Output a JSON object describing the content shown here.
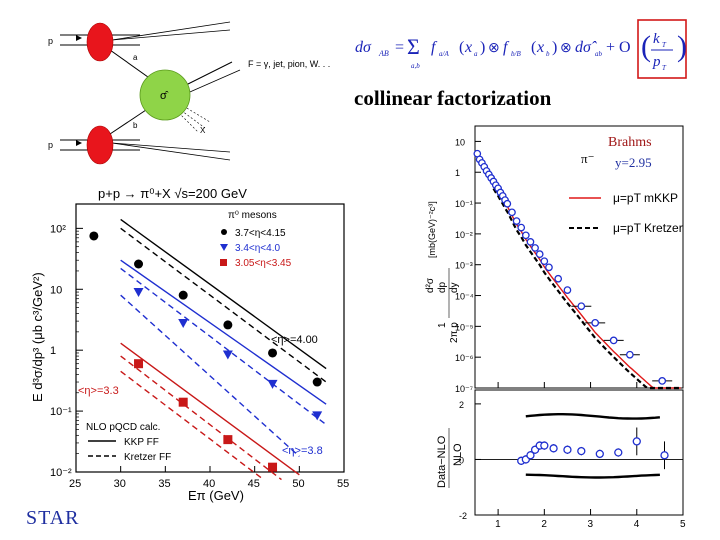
{
  "diagram": {
    "beam_a": "p",
    "beam_b": "p",
    "parton_a": "a",
    "parton_b": "b",
    "hard_process": "σ̂",
    "final_state": "F = γ,  jet, pion, W. . .",
    "remnant": "X"
  },
  "formula": {
    "lhs": "dσ",
    "lhs_sub": "AB",
    "equals": "=",
    "sum": "Σ",
    "sum_sub": "a,b",
    "body": "f",
    "fa_sub": "a/A",
    "xa": "x",
    "xa_sub": "a",
    "fb_sub": "b/B",
    "xb": "x",
    "xb_sub": "b",
    "otimes": "⊗",
    "dsigma_hat": "dσ̂",
    "dsigma_hat_sub": "ab",
    "plus_O": "+ O",
    "kt": "k",
    "kt_sub": "T",
    "pt": "p",
    "pt_sub": "T"
  },
  "caption": "collinear factorization",
  "star_label": "STAR",
  "chart_data": [
    {
      "type": "scatter",
      "title": "p+p → π⁰+X   √s=200 GeV",
      "xlabel": "Eπ (GeV)",
      "ylabel": "E d³σ/dp³ (μb c³/GeV²)",
      "xlim": [
        25,
        55
      ],
      "ylim_log10": [
        -2,
        2.4
      ],
      "yscale": "log",
      "x_ticks": [
        25,
        30,
        35,
        40,
        45,
        50,
        55
      ],
      "y_tick_labels": [
        "10²",
        "10",
        "1",
        "10⁻¹",
        "10⁻²"
      ],
      "legend_title": "π⁰ mesons",
      "series": [
        {
          "name": "3.7<η<4.15",
          "marker": "circle",
          "color": "#000000",
          "x": [
            27,
            32,
            37,
            42,
            47,
            52
          ],
          "y": [
            75,
            26,
            8,
            2.6,
            0.9,
            0.3
          ]
        },
        {
          "name": "3.4<η<4.0",
          "marker": "triangle-down",
          "color": "#1f2fd0",
          "x": [
            32,
            37,
            42,
            47,
            52
          ],
          "y": [
            9,
            2.8,
            0.85,
            0.28,
            0.085
          ]
        },
        {
          "name": "3.05<η<3.45",
          "marker": "square",
          "color": "#c81818",
          "x": [
            32,
            37,
            42,
            47
          ],
          "y": [
            0.6,
            0.14,
            0.034,
            0.012
          ]
        }
      ],
      "curves": [
        {
          "name": "KKP FF",
          "color": "#000000",
          "dash": false,
          "x": [
            30,
            53
          ],
          "y": [
            140,
            0.5
          ]
        },
        {
          "name": "Kretzer FF",
          "color": "#000000",
          "dash": true,
          "x": [
            30,
            53
          ],
          "y": [
            100,
            0.3
          ]
        },
        {
          "name": "",
          "color": "#1f2fd0",
          "dash": false,
          "x": [
            30,
            53
          ],
          "y": [
            30,
            0.13
          ]
        },
        {
          "name": "",
          "color": "#1f2fd0",
          "dash": true,
          "x": [
            30,
            53
          ],
          "y": [
            22,
            0.06
          ]
        },
        {
          "name": "",
          "color": "#1f2fd0",
          "dash": true,
          "x": [
            30,
            50
          ],
          "y": [
            8,
            0.018
          ]
        },
        {
          "name": "",
          "color": "#c81818",
          "dash": false,
          "x": [
            30,
            50
          ],
          "y": [
            1.3,
            0.009
          ]
        },
        {
          "name": "",
          "color": "#c81818",
          "dash": true,
          "x": [
            30,
            48
          ],
          "y": [
            0.8,
            0.0075
          ]
        },
        {
          "name": "",
          "color": "#c81818",
          "dash": true,
          "x": [
            30,
            46
          ],
          "y": [
            0.45,
            0.0075
          ]
        }
      ],
      "legend_calc": "NLO pQCD calc.",
      "annotations": [
        "<η>=4.00",
        "<η>=3.3",
        "<η>=3.8"
      ]
    },
    {
      "type": "scatter",
      "title": "Brahms",
      "particle": "π⁻",
      "rapidity": "y=2.95",
      "yscale": "log",
      "ylim_log10": [
        -7,
        1.5
      ],
      "xlim": [
        0.5,
        5
      ],
      "x_ticks": [
        1,
        2,
        3,
        4,
        5
      ],
      "y_tick_labels": [
        "10",
        "1",
        "10⁻¹",
        "10⁻²",
        "10⁻³",
        "10⁻⁴",
        "10⁻⁵",
        "10⁻⁶",
        "10⁻⁷"
      ],
      "ylabel_parts": {
        "frac": "1",
        "den": "2π p",
        "den_sub": "T",
        "num": "d²σ",
        "den2": "dp",
        "den2_sub": "T",
        "den3": "dy",
        "units": "[mb(GeV)⁻²c³]"
      },
      "series": [
        {
          "name": "data",
          "marker": "open-circle",
          "color": "#1f2fd0",
          "x": [
            0.55,
            0.6,
            0.65,
            0.7,
            0.75,
            0.8,
            0.85,
            0.9,
            0.95,
            1.0,
            1.05,
            1.1,
            1.15,
            1.2,
            1.3,
            1.4,
            1.5,
            1.6,
            1.7,
            1.8,
            1.9,
            2.0,
            2.1,
            2.3,
            2.5,
            2.8,
            3.1,
            3.5,
            3.85,
            4.55
          ],
          "y": [
            4,
            2.6,
            2.0,
            1.5,
            1.1,
            0.85,
            0.65,
            0.5,
            0.38,
            0.3,
            0.22,
            0.17,
            0.125,
            0.095,
            0.05,
            0.026,
            0.016,
            0.009,
            0.0055,
            0.0035,
            0.0022,
            0.0013,
            0.00082,
            0.00035,
            0.00015,
            4.5e-05,
            1.3e-05,
            3.5e-06,
            1.2e-06,
            1.7e-07
          ]
        }
      ],
      "curves": [
        {
          "name": "μ=pT mKKP",
          "color": "#e01818",
          "dash": false
        },
        {
          "name": "μ=pT Kretzer",
          "color": "#000000",
          "dash": true
        }
      ],
      "ratio_panel": {
        "ylabel": "Data−NLO / NLO",
        "ylabel_num": "Data−NLO",
        "ylabel_den": "NLO",
        "ylim": [
          -2,
          2.5
        ],
        "y_tick_labels": [
          "2",
          "0",
          "-2"
        ],
        "x": [
          1.5,
          1.6,
          1.7,
          1.8,
          1.9,
          2.0,
          2.2,
          2.5,
          2.8,
          3.2,
          3.6,
          4.0,
          4.6
        ],
        "y": [
          -0.05,
          0.0,
          0.15,
          0.35,
          0.5,
          0.5,
          0.4,
          0.35,
          0.3,
          0.2,
          0.25,
          0.65,
          0.15
        ]
      }
    }
  ]
}
